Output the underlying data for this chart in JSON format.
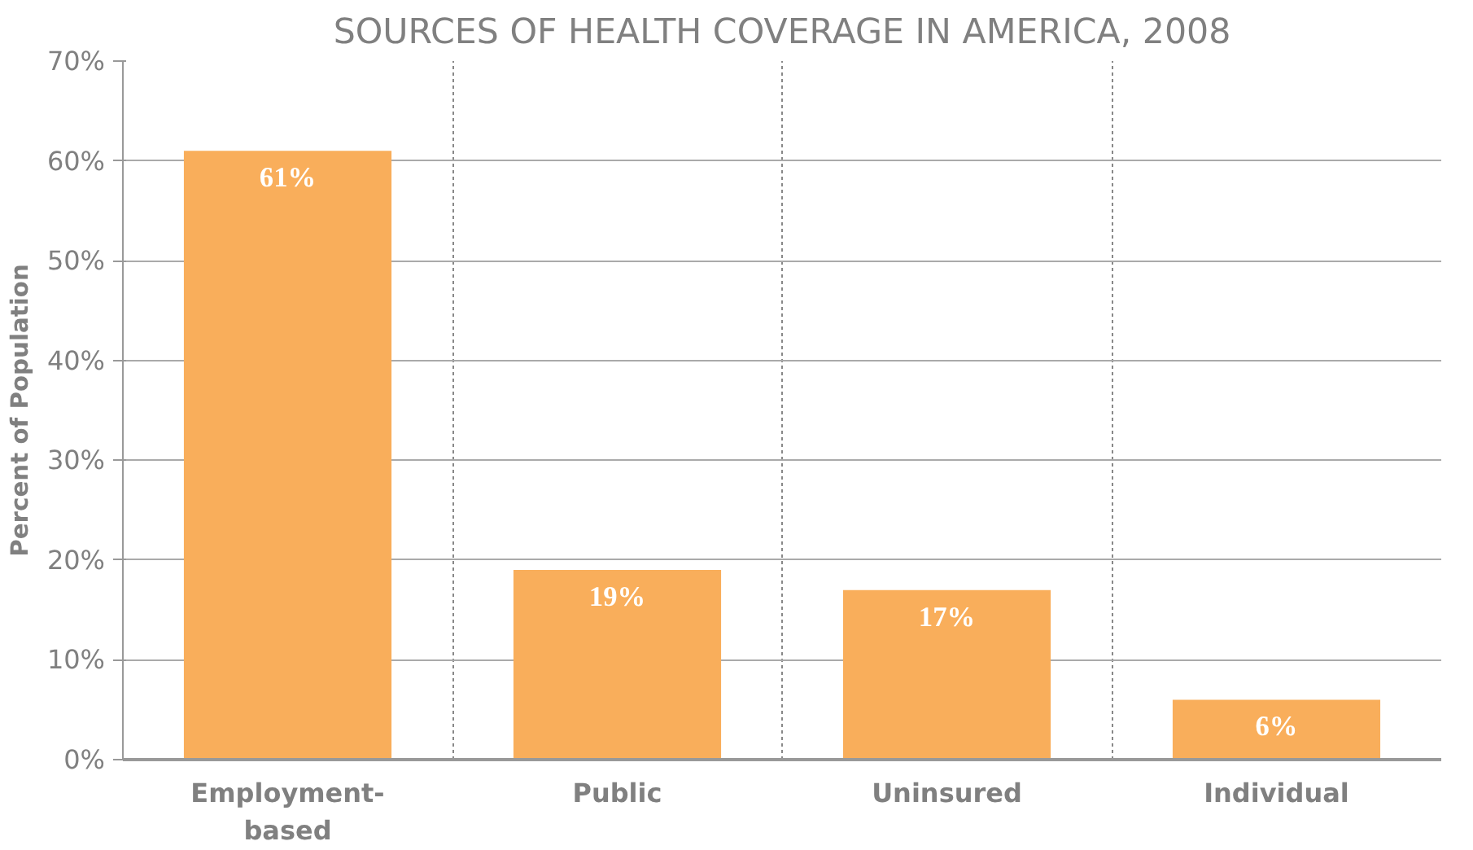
{
  "chart_data": {
    "type": "bar",
    "title": "SOURCES OF HEALTH COVERAGE IN AMERICA, 2008",
    "ylabel": "Percent of Population",
    "categories": [
      "Employment-\nbased",
      "Public",
      "Uninsured",
      "Individual"
    ],
    "values": [
      61,
      19,
      17,
      6
    ],
    "color": "#f9ae5b",
    "data_labels": true,
    "value_labels": [
      "61%",
      "19%",
      "17%",
      "6%"
    ],
    "ylim": [
      0,
      70
    ],
    "yticks": [
      {
        "value": 0,
        "label": "0%"
      },
      {
        "value": 10,
        "label": "10%"
      },
      {
        "value": 20,
        "label": "20%"
      },
      {
        "value": 30,
        "label": "30%"
      },
      {
        "value": 40,
        "label": "40%"
      },
      {
        "value": 50,
        "label": "50%"
      },
      {
        "value": 60,
        "label": "60%"
      },
      {
        "value": 70,
        "label": "70%"
      }
    ],
    "grid": true
  }
}
